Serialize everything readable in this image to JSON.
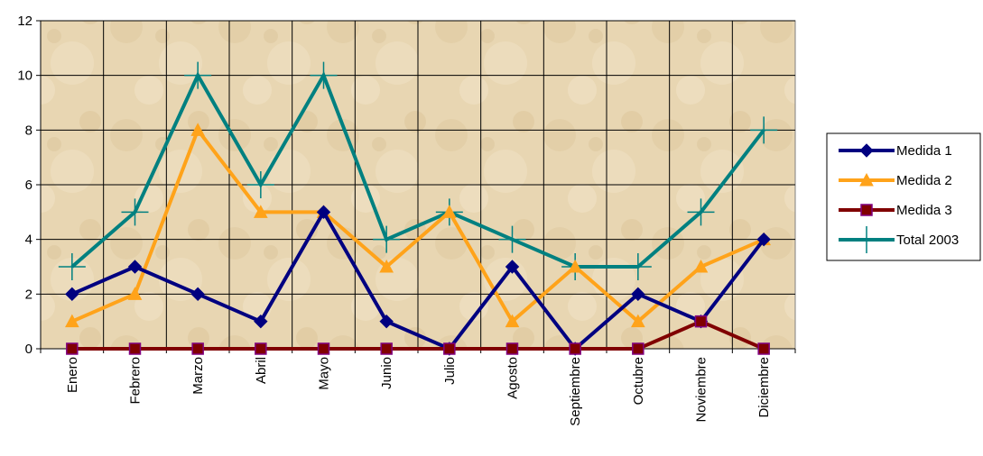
{
  "chart_data": {
    "type": "line",
    "categories": [
      "Enero",
      "Febrero",
      "Marzo",
      "Abril",
      "Mayo",
      "Junio",
      "Julio",
      "Agosto",
      "Septiembre",
      "Octubre",
      "Noviembre",
      "Diciembre"
    ],
    "ylim": [
      0,
      12
    ],
    "yticks": [
      0,
      2,
      4,
      6,
      8,
      10,
      12
    ],
    "grid": true,
    "legend_position": "right",
    "plot_background": "#e6d3ad",
    "series": [
      {
        "name": "Medida 1",
        "color": "#000080",
        "marker": "diamond",
        "values": [
          2,
          3,
          2,
          1,
          5,
          1,
          0,
          3,
          0,
          2,
          1,
          4
        ]
      },
      {
        "name": "Medida 2",
        "color": "#ffa31a",
        "marker": "triangle",
        "values": [
          1,
          2,
          8,
          5,
          5,
          3,
          5,
          1,
          3,
          1,
          3,
          4
        ]
      },
      {
        "name": "Medida 3",
        "color": "#800000",
        "marker": "square",
        "values": [
          0,
          0,
          0,
          0,
          0,
          0,
          0,
          0,
          0,
          0,
          1,
          0
        ]
      },
      {
        "name": "Total 2003",
        "color": "#008080",
        "marker": "plus",
        "values": [
          3,
          5,
          10,
          6,
          10,
          4,
          5,
          4,
          3,
          3,
          5,
          8
        ]
      }
    ]
  }
}
